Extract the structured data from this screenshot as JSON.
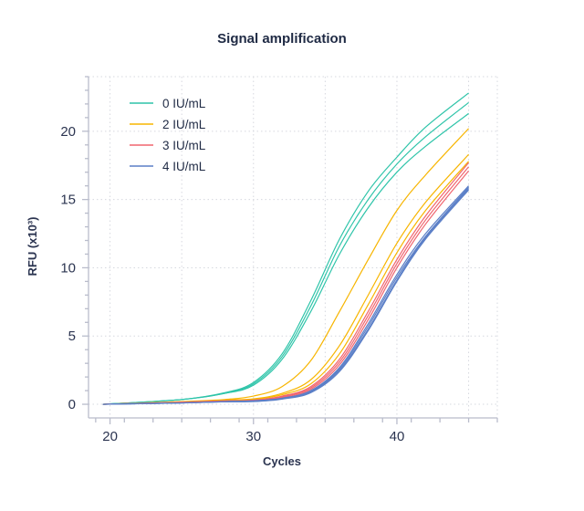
{
  "chart_data": {
    "type": "line",
    "title": "Signal amplification",
    "xlabel": "Cycles",
    "ylabel": "RFU (x10³)",
    "xlim": [
      18.5,
      47
    ],
    "ylim": [
      -1,
      24
    ],
    "xticks": [
      20,
      30,
      40
    ],
    "yticks": [
      0,
      5,
      10,
      15,
      20
    ],
    "grid": true,
    "legend_position": "top-left",
    "x": [
      19.5,
      25,
      28,
      30,
      32,
      34,
      36,
      38,
      40,
      42,
      45
    ],
    "groups": [
      {
        "name": "0 IU/mL",
        "color": "#2ec4a9"
      },
      {
        "name": "2 IU/mL",
        "color": "#f7b500"
      },
      {
        "name": "3 IU/mL",
        "color": "#f0656f"
      },
      {
        "name": "4 IU/mL",
        "color": "#5b7fc7"
      }
    ],
    "series": [
      {
        "group": 0,
        "values": [
          0,
          0.35,
          0.85,
          1.6,
          3.7,
          7.6,
          12.1,
          15.6,
          18.1,
          20.3,
          22.8
        ]
      },
      {
        "group": 0,
        "values": [
          0,
          0.35,
          0.8,
          1.5,
          3.5,
          7.2,
          11.6,
          15.0,
          17.6,
          19.6,
          22.1
        ]
      },
      {
        "group": 0,
        "values": [
          0,
          0.35,
          0.8,
          1.4,
          3.3,
          6.8,
          11.0,
          14.4,
          17.0,
          18.9,
          21.3
        ]
      },
      {
        "group": 1,
        "values": [
          0,
          0.2,
          0.35,
          0.6,
          1.3,
          3.2,
          6.8,
          10.6,
          14.2,
          16.8,
          20.2
        ]
      },
      {
        "group": 1,
        "values": [
          0,
          0.15,
          0.3,
          0.4,
          0.8,
          1.8,
          4.3,
          8.0,
          11.8,
          14.8,
          18.3
        ]
      },
      {
        "group": 1,
        "values": [
          0,
          0.15,
          0.25,
          0.35,
          0.7,
          1.5,
          3.7,
          7.3,
          11.1,
          14.2,
          17.8
        ]
      },
      {
        "group": 2,
        "values": [
          0,
          0.15,
          0.25,
          0.3,
          0.6,
          1.3,
          3.3,
          6.8,
          10.6,
          13.8,
          17.7
        ]
      },
      {
        "group": 2,
        "values": [
          0,
          0.15,
          0.25,
          0.3,
          0.55,
          1.2,
          3.1,
          6.5,
          10.3,
          13.5,
          17.4
        ]
      },
      {
        "group": 2,
        "values": [
          0,
          0.15,
          0.2,
          0.28,
          0.5,
          1.1,
          2.9,
          6.2,
          10.0,
          13.2,
          17.1
        ]
      },
      {
        "group": 3,
        "values": [
          0,
          0.1,
          0.2,
          0.25,
          0.45,
          1.0,
          2.7,
          5.9,
          9.5,
          12.5,
          16.0
        ]
      },
      {
        "group": 3,
        "values": [
          0,
          0.1,
          0.2,
          0.25,
          0.42,
          0.95,
          2.6,
          5.7,
          9.3,
          12.3,
          15.9
        ]
      },
      {
        "group": 3,
        "values": [
          0,
          0.1,
          0.18,
          0.22,
          0.4,
          0.9,
          2.5,
          5.5,
          9.1,
          12.2,
          15.8
        ]
      },
      {
        "group": 3,
        "values": [
          0,
          0.1,
          0.18,
          0.2,
          0.38,
          0.85,
          2.4,
          5.4,
          9.0,
          12.1,
          15.7
        ]
      }
    ]
  }
}
